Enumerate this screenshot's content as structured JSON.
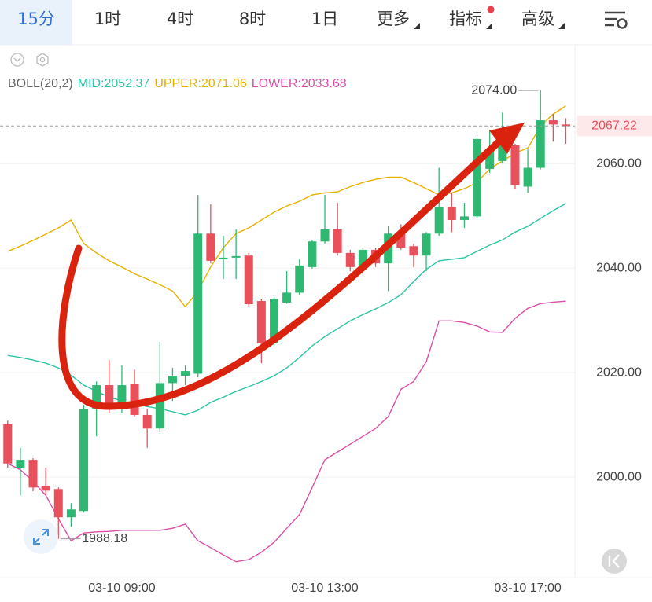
{
  "tabs": [
    "15分",
    "1时",
    "4时",
    "8时",
    "1日",
    "更多",
    "指标",
    "高级"
  ],
  "selected_tab": 0,
  "chart_data": {
    "type": "candlestick",
    "indicator": "BOLL(20,2)",
    "categories": [
      null,
      null,
      null,
      null,
      null,
      null,
      null,
      null,
      null,
      "03-10 09:00",
      null,
      null,
      null,
      null,
      null,
      null,
      null,
      null,
      null,
      null,
      null,
      null,
      null,
      null,
      null,
      "03-10 13:00",
      null,
      null,
      null,
      null,
      null,
      null,
      null,
      null,
      null,
      null,
      null,
      null,
      null,
      null,
      null,
      "03-10 17:00",
      null,
      null,
      null
    ],
    "open": [
      2010.1,
      2001.8,
      2003.3,
      1998.3,
      1997.7,
      1992.3,
      1993.5,
      2013.1,
      2017.6,
      2013.1,
      2017.9,
      2011.9,
      2009.3,
      2018.0,
      2019.4,
      2019.8,
      2046.6,
      2041.7,
      2042.0,
      2042.4,
      2033.7,
      2025.6,
      2033.4,
      2035.3,
      2040.2,
      2045.1,
      2047.4,
      2042.9,
      2040.2,
      2043.5,
      2040.9,
      2046.6,
      2044.2,
      2042.4,
      2046.6,
      2051.7,
      2049.2,
      2049.9,
      2059.0,
      2060.5,
      2063.5,
      2055.6,
      2059.2,
      2068.3,
      2067.5
    ],
    "high": [
      2010.8,
      2005.6,
      2003.6,
      2001.8,
      1998.0,
      1995.0,
      2013.8,
      2018.3,
      2022.4,
      2021.4,
      2020.6,
      2013.1,
      2025.9,
      2020.9,
      2021.4,
      2054.0,
      2052.2,
      2046.2,
      2047.4,
      2042.9,
      2034.1,
      2034.4,
      2039.4,
      2041.7,
      2045.4,
      2054.0,
      2052.5,
      2043.5,
      2043.9,
      2043.9,
      2048.0,
      2048.4,
      2044.7,
      2046.9,
      2059.2,
      2054.4,
      2052.5,
      2065.0,
      2066.5,
      2069.8,
      2063.8,
      2062.7,
      2074.0,
      2069.5,
      2068.7
    ],
    "low": [
      2001.8,
      1996.5,
      1997.3,
      1996.5,
      1988.18,
      1990.5,
      1993.2,
      2007.8,
      2012.3,
      2012.3,
      2011.6,
      2005.6,
      2008.6,
      2014.6,
      2017.6,
      2019.1,
      2040.9,
      2037.9,
      2037.9,
      2032.6,
      2021.8,
      2025.1,
      2033.2,
      2034.9,
      2039.9,
      2044.7,
      2042.4,
      2039.4,
      2038.6,
      2040.2,
      2035.6,
      2043.5,
      2040.2,
      2039.4,
      2046.2,
      2046.9,
      2047.7,
      2049.6,
      2058.2,
      2060.0,
      2055.2,
      2054.4,
      2058.9,
      2064.2,
      2063.8
    ],
    "close": [
      2002.6,
      2003.3,
      1998.0,
      1997.4,
      1992.3,
      1993.8,
      2013.1,
      2017.6,
      2013.1,
      2017.6,
      2011.9,
      2009.3,
      2018.0,
      2019.4,
      2020.3,
      2046.6,
      2041.4,
      2042.0,
      2042.3,
      2033.1,
      2025.6,
      2034.1,
      2035.3,
      2040.5,
      2045.1,
      2047.4,
      2042.9,
      2040.2,
      2043.5,
      2040.9,
      2046.6,
      2043.9,
      2042.4,
      2046.6,
      2051.7,
      2049.2,
      2049.9,
      2064.7,
      2062.7,
      2063.9,
      2055.9,
      2059.2,
      2068.3,
      2067.5,
      2067.22
    ],
    "up_color": "#2eb872",
    "down_color": "#e8505b",
    "series": [
      {
        "name": "MID:2052.37",
        "color": "#2ec4a6",
        "values": [
          2023.3,
          2022.9,
          2022.4,
          2021.8,
          2020.9,
          2019.5,
          2017.6,
          2016.4,
          2015.3,
          2014.6,
          2014.0,
          2013.5,
          2013.1,
          2012.5,
          2011.9,
          2012.8,
          2014.3,
          2015.3,
          2016.4,
          2017.3,
          2018.3,
          2019.4,
          2020.9,
          2022.9,
          2025.1,
          2026.9,
          2028.4,
          2029.9,
          2031.1,
          2032.2,
          2033.4,
          2034.9,
          2037.4,
          2039.8,
          2041.4,
          2041.7,
          2042.0,
          2043.2,
          2044.4,
          2045.4,
          2046.9,
          2048.0,
          2049.5,
          2051.0,
          2052.37
        ]
      },
      {
        "name": "UPPER:2071.06",
        "color": "#e8b100",
        "values": [
          2043.2,
          2044.2,
          2045.3,
          2046.5,
          2047.7,
          2049.2,
          2044.7,
          2042.9,
          2041.4,
          2040.2,
          2038.9,
          2037.9,
          2036.8,
          2035.6,
          2032.6,
          2035.6,
          2040.2,
          2043.9,
          2046.6,
          2047.7,
          2049.2,
          2050.7,
          2051.9,
          2052.8,
          2054.0,
          2054.4,
          2054.6,
          2055.6,
          2056.4,
          2057.0,
          2057.4,
          2057.4,
          2056.4,
          2055.2,
          2054.0,
          2054.4,
          2055.2,
          2056.4,
          2059.0,
          2060.5,
          2062.0,
          2063.0,
          2067.2,
          2069.5,
          2071.06
        ]
      },
      {
        "name": "LOWER:2033.68",
        "color": "#d94fa8",
        "values": [
          2002.6,
          2001.4,
          1999.2,
          1996.5,
          1992.0,
          1987.8,
          1989.3,
          1989.5,
          1989.6,
          1989.8,
          1989.8,
          1989.8,
          1989.8,
          1990.2,
          1991.0,
          1987.8,
          1986.5,
          1985.1,
          1983.8,
          1984.2,
          1985.6,
          1987.5,
          1990.2,
          1992.8,
          1998.0,
          2003.3,
          2004.8,
          2006.3,
          2007.8,
          2009.3,
          2011.6,
          2016.8,
          2018.3,
          2022.1,
          2029.9,
          2029.9,
          2029.6,
          2028.9,
          2027.8,
          2027.7,
          2030.4,
          2032.3,
          2033.2,
          2033.5,
          2033.68
        ]
      }
    ],
    "ylim": [
      1981.5,
      2082.3
    ],
    "yticks": [
      {
        "value": 2000,
        "label": "2000.00"
      },
      {
        "value": 2020,
        "label": "2020.00"
      },
      {
        "value": 2040,
        "label": "2040.00"
      },
      {
        "value": 2060,
        "label": "2060.00"
      }
    ],
    "grid": true,
    "current_price": {
      "value": 2067.22,
      "label": "2067.22"
    },
    "high_label": {
      "value": 2074.0,
      "label": "2074.00"
    },
    "low_label": {
      "value": 1988.18,
      "label": "1988.18"
    }
  }
}
